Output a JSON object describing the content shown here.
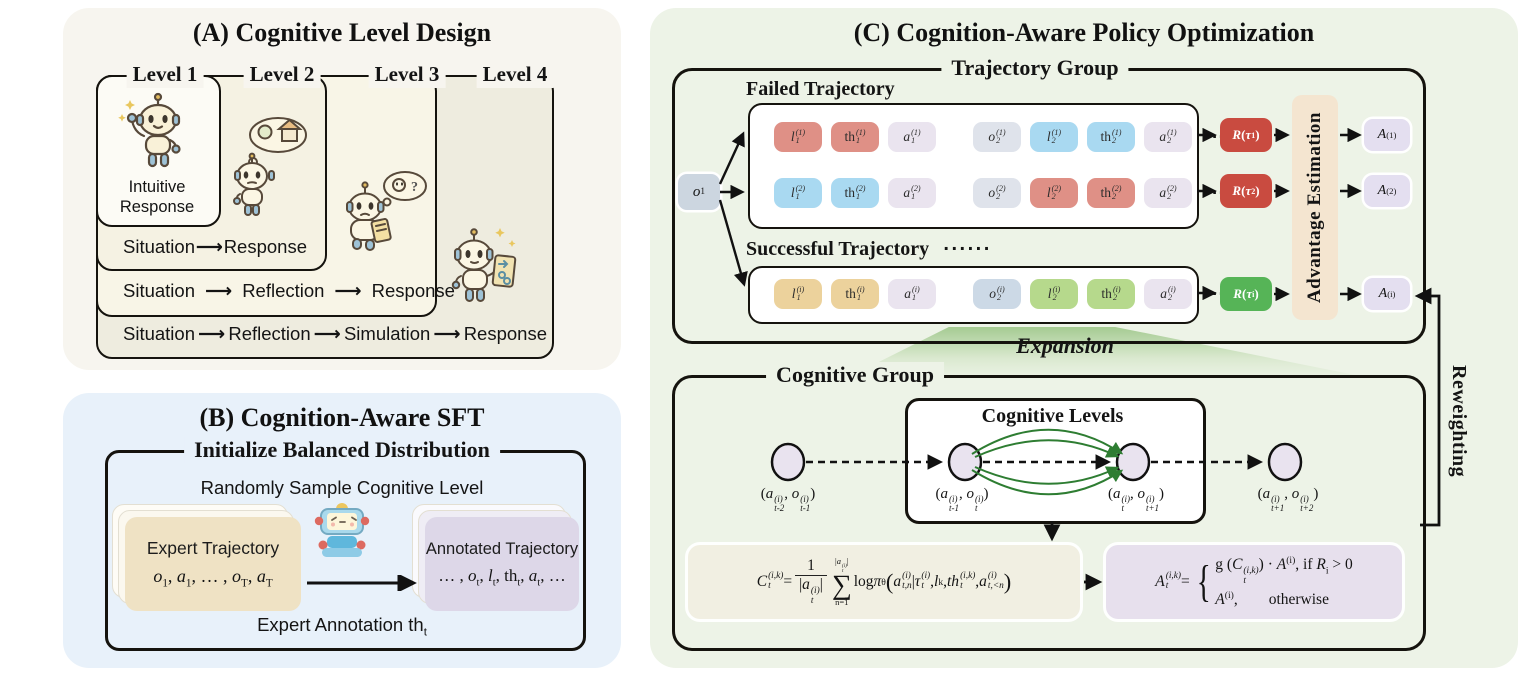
{
  "colors": {
    "panel_a_bg": "#f7f5ef",
    "panel_b_bg": "#e8f1fa",
    "panel_c_bg": "#edf3e7",
    "outline": "#15130e",
    "token_red": "#df9086",
    "token_blue": "#a9d9f1",
    "token_lavender": "#eae4ef",
    "token_gray": "#dfe3eb",
    "token_gold": "#ecd29c",
    "token_green": "#b6d98c",
    "obs_token": "#ccd6e0",
    "obs_token_success": "#ccd9e6",
    "reward_red": "#c94b40",
    "reward_green": "#56b457",
    "advantage_box": "#f4e5d0",
    "advantage_token": "#e4dff0",
    "formula_left_bg": "#f1efe2",
    "formula_right_bg": "#e7e0ed",
    "arc_green": "#2e7d32",
    "expansion_green": "#93c17d"
  },
  "icons": [
    "waving-robot",
    "thinking-robot-house",
    "thinking-robot-tablet",
    "robot-with-card",
    "annotator-robot"
  ],
  "panelA": {
    "title": "(A) Cognitive Level Design",
    "levels": [
      "Level 1",
      "Level 2",
      "Level 3",
      "Level 4"
    ],
    "level1_caption": "Intuitive Response",
    "arrow": "⟶",
    "flows": [
      {
        "steps": [
          "Situation",
          "Response"
        ]
      },
      {
        "steps": [
          "Situation",
          "Reflection",
          "Response"
        ]
      },
      {
        "steps": [
          "Situation",
          "Reflection",
          "Simulation",
          "Response"
        ]
      }
    ]
  },
  "panelB": {
    "title": "(B) Cognition-Aware SFT",
    "group_title": "Initialize Balanced Distribution",
    "subtitle": "Randomly Sample Cognitive Level",
    "left_card": {
      "title": "Expert Trajectory",
      "math": [
        [
          "i",
          "o"
        ],
        [
          "sub",
          "1"
        ],
        [
          "n",
          ", "
        ],
        [
          "i",
          "a"
        ],
        [
          "sub",
          "1"
        ],
        [
          "n",
          ", … , "
        ],
        [
          "i",
          "o"
        ],
        [
          "sub",
          "T"
        ],
        [
          "n",
          ", "
        ],
        [
          "i",
          "a"
        ],
        [
          "sub",
          "T"
        ]
      ]
    },
    "right_card": {
      "title": "Annotated Trajectory",
      "math": [
        [
          "n",
          "… , "
        ],
        [
          "i",
          "o"
        ],
        [
          "sub",
          "t"
        ],
        [
          "n",
          ", "
        ],
        [
          "i",
          "l"
        ],
        [
          "sub",
          "t"
        ],
        [
          "n",
          ", th"
        ],
        [
          "sub",
          "t"
        ],
        [
          "n",
          ", "
        ],
        [
          "i",
          "a"
        ],
        [
          "sub",
          "t"
        ],
        [
          "n",
          ", …"
        ]
      ]
    },
    "footer": [
      [
        "n",
        "Expert Annotation th"
      ],
      [
        "sub",
        "t"
      ]
    ]
  },
  "panelC": {
    "title": "(C) Cognition-Aware Policy Optimization",
    "expansion": "Expansion",
    "reweighting": "Reweighting",
    "tg": {
      "label": "Trajectory Group",
      "failed_label": "Failed Trajectory",
      "success_label": "Successful  Trajectory",
      "success_dots": "······",
      "o1": [
        [
          "i",
          "o"
        ],
        [
          "sub",
          "1"
        ]
      ],
      "rows": [
        {
          "dots": "···",
          "tokens": [
            {
              "c": "red",
              "rt": [
                [
                  "i",
                  "l"
                ],
                [
                  "ss",
                  "(1)",
                  "1"
                ]
              ]
            },
            {
              "c": "red",
              "rt": [
                [
                  "n",
                  "th"
                ],
                [
                  "ss",
                  "(1)",
                  "1"
                ]
              ]
            },
            {
              "c": "lav",
              "rt": [
                [
                  "i",
                  "a"
                ],
                [
                  "ss",
                  "(1)",
                  "1"
                ]
              ]
            },
            {
              "c": "gray",
              "rt": [
                [
                  "i",
                  "o"
                ],
                [
                  "ss",
                  "(1)",
                  "2"
                ]
              ]
            },
            {
              "c": "blue",
              "rt": [
                [
                  "i",
                  "l"
                ],
                [
                  "ss",
                  "(1)",
                  "2"
                ]
              ]
            },
            {
              "c": "blue",
              "rt": [
                [
                  "n",
                  "th"
                ],
                [
                  "ss",
                  "(1)",
                  "2"
                ]
              ]
            },
            {
              "c": "lav",
              "rt": [
                [
                  "i",
                  "a"
                ],
                [
                  "ss",
                  "(1)",
                  "2"
                ]
              ]
            }
          ]
        },
        {
          "dots": "···",
          "tokens": [
            {
              "c": "blue",
              "rt": [
                [
                  "i",
                  "l"
                ],
                [
                  "ss",
                  "(2)",
                  "1"
                ]
              ]
            },
            {
              "c": "blue",
              "rt": [
                [
                  "n",
                  "th"
                ],
                [
                  "ss",
                  "(2)",
                  "1"
                ]
              ]
            },
            {
              "c": "lav",
              "rt": [
                [
                  "i",
                  "a"
                ],
                [
                  "ss",
                  "(2)",
                  "1"
                ]
              ]
            },
            {
              "c": "gray",
              "rt": [
                [
                  "i",
                  "o"
                ],
                [
                  "ss",
                  "(2)",
                  "2"
                ]
              ]
            },
            {
              "c": "red",
              "rt": [
                [
                  "i",
                  "l"
                ],
                [
                  "ss",
                  "(2)",
                  "2"
                ]
              ]
            },
            {
              "c": "red",
              "rt": [
                [
                  "n",
                  "th"
                ],
                [
                  "ss",
                  "(2)",
                  "2"
                ]
              ]
            },
            {
              "c": "lav",
              "rt": [
                [
                  "i",
                  "a"
                ],
                [
                  "ss",
                  "(2)",
                  "2"
                ]
              ]
            }
          ]
        },
        {
          "dots": "···",
          "tokens": [
            {
              "c": "gold",
              "rt": [
                [
                  "i",
                  "l"
                ],
                [
                  "ss",
                  "(i)",
                  "1"
                ]
              ]
            },
            {
              "c": "gold",
              "rt": [
                [
                  "n",
                  "th"
                ],
                [
                  "ss",
                  "(i)",
                  "1"
                ]
              ]
            },
            {
              "c": "lav",
              "rt": [
                [
                  "i",
                  "a"
                ],
                [
                  "ss",
                  "(i)",
                  "1"
                ]
              ]
            },
            {
              "c": "obs2",
              "rt": [
                [
                  "i",
                  "o"
                ],
                [
                  "ss",
                  "(i)",
                  "2"
                ]
              ]
            },
            {
              "c": "green",
              "rt": [
                [
                  "i",
                  "l"
                ],
                [
                  "ss",
                  "(i)",
                  "2"
                ]
              ]
            },
            {
              "c": "green",
              "rt": [
                [
                  "n",
                  "th"
                ],
                [
                  "ss",
                  "(i)",
                  "2"
                ]
              ]
            },
            {
              "c": "lav",
              "rt": [
                [
                  "i",
                  "a"
                ],
                [
                  "ss",
                  "(i)",
                  "2"
                ]
              ]
            }
          ]
        }
      ],
      "rewards": [
        {
          "c": "rr",
          "rt": [
            [
              "i",
              "R"
            ],
            [
              "n",
              " ("
            ],
            [
              "i",
              "τ"
            ],
            [
              "sub",
              "1"
            ],
            [
              "n",
              ")"
            ]
          ]
        },
        {
          "c": "rr",
          "rt": [
            [
              "i",
              "R"
            ],
            [
              "n",
              " ("
            ],
            [
              "i",
              "τ"
            ],
            [
              "sub",
              "2"
            ],
            [
              "n",
              ")"
            ]
          ]
        },
        {
          "c": "rg",
          "rt": [
            [
              "i",
              "R"
            ],
            [
              "n",
              " ("
            ],
            [
              "i",
              "τ"
            ],
            [
              "sub",
              "i"
            ],
            [
              "n",
              ")"
            ]
          ]
        }
      ],
      "adv_label": "Advantage Estimation",
      "advs": [
        [
          [
            "i",
            "A"
          ],
          [
            "sup",
            "(1)"
          ]
        ],
        [
          [
            "i",
            "A"
          ],
          [
            "sup",
            "(2)"
          ]
        ],
        [
          [
            "i",
            "A"
          ],
          [
            "sup",
            "(i)"
          ]
        ]
      ]
    },
    "cg": {
      "label": "Cognitive Group",
      "levels_label": "Cognitive Levels",
      "nodes": [
        [
          [
            "n",
            "("
          ],
          [
            "i",
            "a"
          ],
          [
            "ss",
            "(i)",
            "t-2"
          ],
          [
            "n",
            ", "
          ],
          [
            "i",
            "o"
          ],
          [
            "ss",
            "(i)",
            "t-1"
          ],
          [
            "n",
            ")"
          ]
        ],
        [
          [
            "n",
            "("
          ],
          [
            "i",
            "a"
          ],
          [
            "ss",
            "(i)",
            "t-1"
          ],
          [
            "n",
            ", "
          ],
          [
            "i",
            "o"
          ],
          [
            "ss",
            "(i)",
            "t"
          ],
          [
            "n",
            ")"
          ]
        ],
        [
          [
            "n",
            "("
          ],
          [
            "i",
            "a"
          ],
          [
            "ss",
            "(i)",
            "t"
          ],
          [
            "n",
            ", "
          ],
          [
            "i",
            "o"
          ],
          [
            "ss",
            "(i)",
            "t+1"
          ],
          [
            "n",
            ")"
          ]
        ],
        [
          [
            "n",
            "("
          ],
          [
            "i",
            "a"
          ],
          [
            "ss",
            "(i)",
            "t+1"
          ],
          [
            "n",
            ", "
          ],
          [
            "i",
            "o"
          ],
          [
            "ss",
            "(i)",
            "t+2"
          ],
          [
            "n",
            ")"
          ]
        ]
      ],
      "f1": [
        [
          "i",
          "C"
        ],
        [
          "ss",
          "(i,k)",
          "t"
        ],
        [
          "n",
          " = "
        ],
        [
          "frac",
          [
            [
              "n",
              "1"
            ]
          ],
          [
            [
              "n",
              "|"
            ],
            [
              "i",
              "a"
            ],
            [
              "ss",
              "(i)",
              "t"
            ],
            [
              "n",
              "|"
            ]
          ]
        ],
        [
          "sum",
          [
            [
              "n",
              "|"
            ],
            [
              "i",
              "a"
            ],
            [
              "ss",
              "(i)",
              "t"
            ],
            [
              "n",
              "|"
            ]
          ],
          [
            [
              "n",
              "n=1"
            ]
          ]
        ],
        [
          "n",
          " log "
        ],
        [
          "i",
          "π"
        ],
        [
          "sub",
          "θ"
        ],
        [
          "big",
          "("
        ],
        [
          "i",
          "a"
        ],
        [
          "ss",
          "(i)",
          "t,n"
        ],
        [
          "n",
          " | "
        ],
        [
          "i",
          "τ"
        ],
        [
          "ss",
          "(i)",
          "t"
        ],
        [
          "n",
          ", "
        ],
        [
          "i",
          "l"
        ],
        [
          "sub",
          "k"
        ],
        [
          "n",
          ", "
        ],
        [
          "i",
          "th"
        ],
        [
          "ss",
          "(i,k)",
          "t"
        ],
        [
          "n",
          ", "
        ],
        [
          "i",
          "a"
        ],
        [
          "ss",
          "(i)",
          "t,<n"
        ],
        [
          "big",
          ")"
        ]
      ],
      "f2": [
        [
          "i",
          "A"
        ],
        [
          "ss",
          "(i,k)",
          "t"
        ],
        [
          "n",
          " = "
        ],
        [
          "cases",
          [
            [
              "n",
              "g ("
            ],
            [
              "i",
              "C"
            ],
            [
              "ss",
              "(i,k)",
              "t"
            ],
            [
              "n",
              ") · "
            ],
            [
              "i",
              "A"
            ],
            [
              "sup",
              "(i)"
            ],
            [
              "n",
              ", if "
            ],
            [
              "i",
              "R"
            ],
            [
              "sub",
              "i"
            ],
            [
              "n",
              " > 0"
            ]
          ],
          [
            [
              "i",
              "A"
            ],
            [
              "sup",
              "(i)"
            ],
            [
              "n",
              ",        otherwise"
            ]
          ]
        ]
      ]
    }
  }
}
